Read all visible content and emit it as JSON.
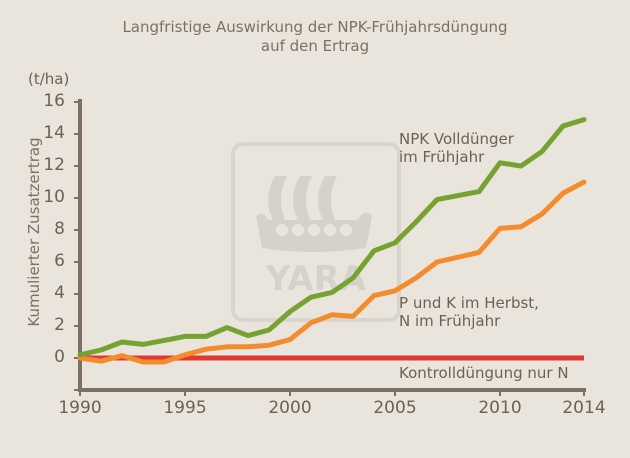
{
  "title_line1": "Langfristige Auswirkung der NPK-Frühjahrsdüngung",
  "title_line2": "auf den Ertrag",
  "unit": "(t/ha)",
  "ylabel": "Kumulierter Zusatzertrag",
  "yticks": [
    "16",
    "14",
    "12",
    "10",
    "8",
    "6",
    "4",
    "2",
    "0"
  ],
  "xticks": [
    "1990",
    "1995",
    "2000",
    "2005",
    "2010",
    "2014"
  ],
  "labels": {
    "npk_line1": "NPK Volldünger",
    "npk_line2": "im Frühjahr",
    "pk_line1": "P und K im Herbst,",
    "pk_line2": "N im Frühjahr",
    "control": "Kontrolldüngung nur N"
  },
  "watermark": "YARA",
  "colors": {
    "npk": "#76a232",
    "pk": "#f28c2d",
    "control": "#de3a33",
    "axis": "#7d7062",
    "background": "#e9e5dc",
    "watermark": "#d8d4cb"
  },
  "chart_data": {
    "type": "line",
    "title": "Langfristige Auswirkung der NPK-Frühjahrsdüngung auf den Ertrag",
    "xlabel": "",
    "ylabel": "Kumulierter Zusatzertrag (t/ha)",
    "ylim": [
      -2,
      16
    ],
    "xlim": [
      1990,
      2014
    ],
    "grid": false,
    "x": [
      1990,
      1991,
      1992,
      1993,
      1994,
      1995,
      1996,
      1997,
      1998,
      1999,
      2000,
      2001,
      2002,
      2003,
      2004,
      2005,
      2006,
      2007,
      2008,
      2009,
      2010,
      2011,
      2012,
      2013,
      2014
    ],
    "series": [
      {
        "name": "NPK Volldünger im Frühjahr",
        "values": [
          0.2,
          0.5,
          1.0,
          0.85,
          1.1,
          1.35,
          1.35,
          1.9,
          1.4,
          1.75,
          2.9,
          3.8,
          4.1,
          5.0,
          6.7,
          7.2,
          8.5,
          9.9,
          10.15,
          10.4,
          12.2,
          12.0,
          12.9,
          14.5,
          14.9
        ]
      },
      {
        "name": "P und K im Herbst, N im Frühjahr",
        "values": [
          0.0,
          -0.2,
          0.15,
          -0.25,
          -0.25,
          0.2,
          0.55,
          0.7,
          0.7,
          0.8,
          1.15,
          2.2,
          2.7,
          2.6,
          3.9,
          4.2,
          5.0,
          6.0,
          6.3,
          6.6,
          8.1,
          8.2,
          9.0,
          10.3,
          11.0
        ]
      },
      {
        "name": "Kontrolldüngung nur N",
        "values": [
          0,
          0,
          0,
          0,
          0,
          0,
          0,
          0,
          0,
          0,
          0,
          0,
          0,
          0,
          0,
          0,
          0,
          0,
          0,
          0,
          0,
          0,
          0,
          0,
          0
        ]
      }
    ]
  }
}
